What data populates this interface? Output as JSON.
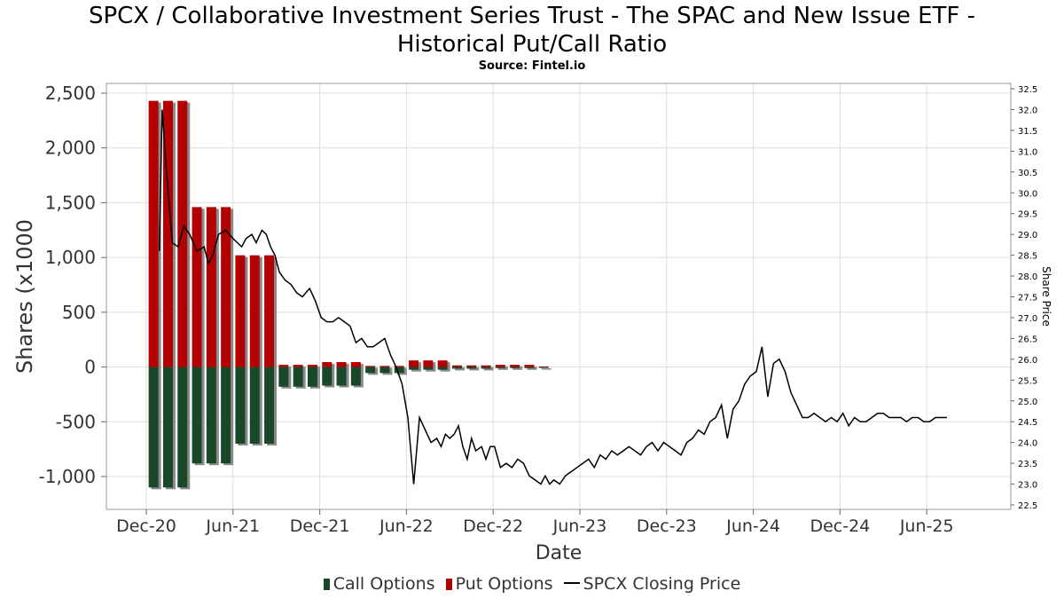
{
  "title_line1": "SPCX / Collaborative Investment Series Trust - The SPAC and New Issue ETF -",
  "title_line2": "Historical Put/Call Ratio",
  "subtitle": "Source: Fintel.io",
  "colors": {
    "call": "#1a4728",
    "put": "#b30000",
    "price": "#000000",
    "grid": "#dddddd",
    "shadow": "#8a8a8a"
  },
  "chart_data": {
    "type": "bar",
    "xlabel": "Date",
    "ylabel": "Shares (x1000",
    "y2label": "Share Price",
    "ylim": [
      -1300,
      2550
    ],
    "y2lim": [
      22.4,
      32.6
    ],
    "x_ticks": [
      "Dec-20",
      "Jun-21",
      "Dec-21",
      "Jun-22",
      "Dec-22",
      "Jun-23",
      "Dec-23",
      "Jun-24",
      "Dec-24",
      "Jun-25"
    ],
    "y_ticks": [
      "2,500",
      "2,000",
      "1,500",
      "1,000",
      "500",
      "0",
      "-500",
      "-1,000"
    ],
    "y2_ticks": [
      "32.5",
      "32.0",
      "31.5",
      "31.0",
      "30.5",
      "30.0",
      "29.5",
      "29.0",
      "28.5",
      "28.0",
      "27.5",
      "27.0",
      "26.5",
      "26.0",
      "25.5",
      "25.0",
      "24.5",
      "24.0",
      "23.5",
      "23.0",
      "22.5"
    ],
    "series": [
      {
        "name": "Call Options",
        "x": [
          0.5,
          1.5,
          2.5,
          3.5,
          4.5,
          5.5,
          6.5,
          7.5,
          8.5,
          9.5,
          10.5,
          11.5,
          12.5,
          13.5,
          14.5,
          15.5,
          16.5,
          17.5,
          18.5,
          19.5,
          20.5,
          21.5,
          22.5,
          23.5,
          24.5,
          25.5,
          26.5,
          27.5
        ],
        "values": [
          -1100,
          -1100,
          -1100,
          -880,
          -880,
          -880,
          -700,
          -700,
          -700,
          -180,
          -180,
          -180,
          -170,
          -170,
          -170,
          -55,
          -55,
          -55,
          -25,
          -25,
          -25,
          -15,
          -15,
          -15,
          -10,
          -10,
          -10,
          -8
        ]
      },
      {
        "name": "Put Options",
        "x": [
          0.5,
          1.5,
          2.5,
          3.5,
          4.5,
          5.5,
          6.5,
          7.5,
          8.5,
          9.5,
          10.5,
          11.5,
          12.5,
          13.5,
          14.5,
          15.5,
          16.5,
          17.5,
          18.5,
          19.5,
          20.5,
          21.5,
          22.5,
          23.5,
          24.5,
          25.5,
          26.5,
          27.5
        ],
        "values": [
          2430,
          2430,
          2430,
          1460,
          1460,
          1460,
          1020,
          1020,
          1020,
          20,
          20,
          20,
          45,
          45,
          45,
          10,
          10,
          10,
          60,
          60,
          60,
          15,
          15,
          15,
          20,
          20,
          20,
          5
        ]
      },
      {
        "name": "SPCX Closing Price",
        "x": [
          0.9,
          1.1,
          1.4,
          1.8,
          2.2,
          2.6,
          3.0,
          3.5,
          4.0,
          4.3,
          4.6,
          5.0,
          5.5,
          6.0,
          6.3,
          6.6,
          6.9,
          7.3,
          7.6,
          8.0,
          8.3,
          8.6,
          8.9,
          9.2,
          9.6,
          10.0,
          10.4,
          10.8,
          11.3,
          11.7,
          12.1,
          12.5,
          12.9,
          13.3,
          13.7,
          14.1,
          14.5,
          14.9,
          15.3,
          15.7,
          16.1,
          16.5,
          16.9,
          17.3,
          17.7,
          18.1,
          18.5,
          18.9,
          19.3,
          19.7,
          20.1,
          20.4,
          20.7,
          21.0,
          21.3,
          21.6,
          21.9,
          22.2,
          22.5,
          22.8,
          23.2,
          23.5,
          23.8,
          24.1,
          24.5,
          24.9,
          25.3,
          25.7,
          26.1,
          26.5,
          26.9,
          27.3,
          27.6,
          27.9,
          28.2,
          28.6,
          29.0,
          29.4,
          29.8,
          30.2,
          30.6,
          31.0,
          31.4,
          31.8,
          32.2,
          32.6,
          33.0,
          33.4,
          33.8,
          34.2,
          34.6,
          35.0,
          35.4,
          35.8,
          36.2,
          36.6,
          37.0,
          37.4,
          37.8,
          38.2,
          38.6,
          39.0,
          39.4,
          39.8,
          40.2,
          40.6,
          41.0,
          41.4,
          41.8,
          42.2,
          42.6,
          43.0,
          43.4,
          43.8,
          44.2,
          44.6,
          45.0,
          45.4,
          45.8,
          46.2,
          46.6,
          47.0,
          47.4,
          47.8,
          48.2,
          48.6,
          49.0,
          49.4,
          49.8,
          50.2,
          50.6,
          51.0,
          51.4,
          51.8,
          52.2,
          52.6,
          53.0,
          53.4,
          53.8,
          54.2,
          54.6,
          55.0,
          55.4
        ],
        "values": [
          28.6,
          32.0,
          30.5,
          28.8,
          28.7,
          29.2,
          29.0,
          28.6,
          28.7,
          28.3,
          28.5,
          29.0,
          29.1,
          28.9,
          28.8,
          28.7,
          28.9,
          29.0,
          28.8,
          29.1,
          29.0,
          28.7,
          28.5,
          28.1,
          27.9,
          27.8,
          27.6,
          27.5,
          27.7,
          27.4,
          27.0,
          26.9,
          26.9,
          27.0,
          26.9,
          26.8,
          26.4,
          26.5,
          26.3,
          26.3,
          26.4,
          26.5,
          26.1,
          25.8,
          25.4,
          24.6,
          23.0,
          24.6,
          24.3,
          24.0,
          24.1,
          23.9,
          24.2,
          24.1,
          24.2,
          24.4,
          23.9,
          23.6,
          24.1,
          23.8,
          23.9,
          23.6,
          23.9,
          23.9,
          23.4,
          23.5,
          23.4,
          23.6,
          23.5,
          23.2,
          23.1,
          23.0,
          23.2,
          23.0,
          23.1,
          23.0,
          23.2,
          23.3,
          23.4,
          23.5,
          23.6,
          23.4,
          23.7,
          23.6,
          23.8,
          23.7,
          23.8,
          23.9,
          23.8,
          23.7,
          23.9,
          24.0,
          23.8,
          24.0,
          23.9,
          23.8,
          23.7,
          24.0,
          24.1,
          24.3,
          24.2,
          24.5,
          24.6,
          24.9,
          24.1,
          24.8,
          25.0,
          25.4,
          25.6,
          25.7,
          26.3,
          25.1,
          25.9,
          26.0,
          25.7,
          25.2,
          24.9,
          24.6,
          24.6,
          24.7,
          24.6,
          24.5,
          24.6,
          24.5,
          24.7,
          24.4,
          24.6,
          24.5,
          24.5,
          24.6,
          24.7,
          24.7,
          24.6,
          24.6,
          24.6,
          24.5,
          24.6,
          24.6,
          24.5,
          24.5,
          24.6,
          24.6,
          24.6
        ]
      }
    ],
    "legend_position": "bottom",
    "grid": true
  },
  "legend": {
    "call_label": "Call Options",
    "put_label": "Put Options",
    "price_label": "SPCX Closing Price"
  }
}
